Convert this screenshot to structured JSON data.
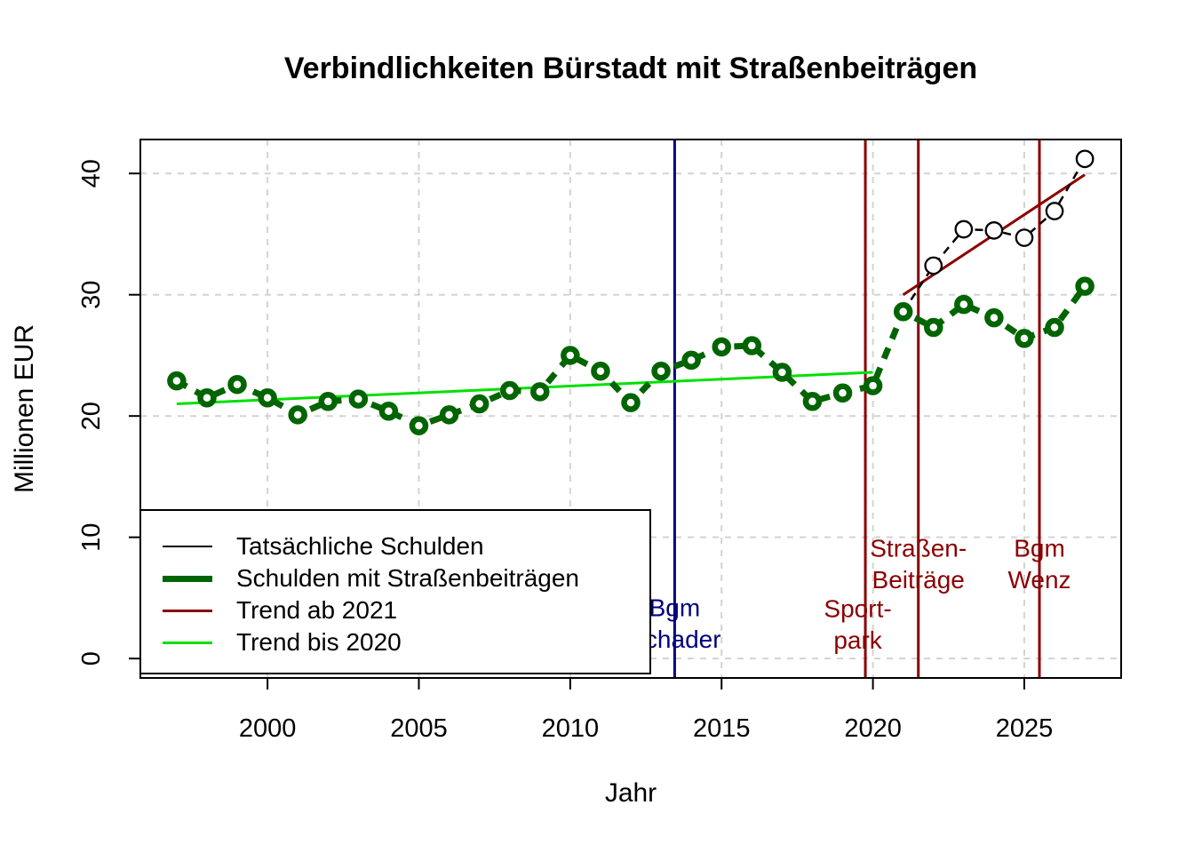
{
  "chart_data": {
    "type": "line",
    "title": "Verbindlichkeiten Bürstadt mit Straßenbeiträgen",
    "xlabel": "Jahr",
    "ylabel": "Millionen EUR",
    "xlim": [
      1995.8,
      2028.2
    ],
    "ylim": [
      -1.6,
      42.8
    ],
    "x_ticks": [
      2000,
      2005,
      2010,
      2015,
      2020,
      2025
    ],
    "y_ticks": [
      0,
      10,
      20,
      30,
      40
    ],
    "grid": true,
    "colors": {
      "background": "#FFFFFF",
      "grid": "#D3D3D3",
      "axis": "#000000"
    },
    "series": [
      {
        "name": "Tatsächliche Schulden",
        "color": "#000000",
        "line_width": 2.5,
        "dash": "9 7",
        "marker": "open-circle",
        "marker_radius": 9.2,
        "marker_stroke_width": 2.3,
        "x": [
          2021,
          2022,
          2023,
          2024,
          2025,
          2026,
          2027
        ],
        "values": [
          28.6,
          32.4,
          35.4,
          35.3,
          34.7,
          36.9,
          41.2
        ]
      },
      {
        "name": "Schulden mit Straßenbeiträgen",
        "color": "#006400",
        "line_width": 7,
        "dash": "13 11",
        "marker": "open-circle",
        "marker_radius": 7.5,
        "marker_stroke_width": 6.5,
        "x": [
          1997,
          1998,
          1999,
          2000,
          2001,
          2002,
          2003,
          2004,
          2005,
          2006,
          2007,
          2008,
          2009,
          2010,
          2011,
          2012,
          2013,
          2014,
          2015,
          2016,
          2017,
          2018,
          2019,
          2020,
          2021,
          2022,
          2023,
          2024,
          2025,
          2026,
          2027
        ],
        "values": [
          22.9,
          21.5,
          22.6,
          21.5,
          20.1,
          21.2,
          21.4,
          20.4,
          19.2,
          20.1,
          21.0,
          22.1,
          22.0,
          25.0,
          23.7,
          21.1,
          23.7,
          24.6,
          25.7,
          25.8,
          23.6,
          21.2,
          21.9,
          22.5,
          28.6,
          27.3,
          29.2,
          28.1,
          26.4,
          27.3,
          30.7
        ]
      }
    ],
    "trend_lines": [
      {
        "name": "Trend ab 2021",
        "color": "#8B0000",
        "width": 3,
        "x": [
          2021,
          2027
        ],
        "y": [
          30.0,
          39.9
        ]
      },
      {
        "name": "Trend bis 2020",
        "color": "#00E000",
        "width": 3,
        "x": [
          1997,
          2020
        ],
        "y": [
          21.0,
          23.6
        ]
      }
    ],
    "event_lines": [
      {
        "x": 2013.45,
        "color": "#000080",
        "width": 3,
        "label": "Bgm Schader",
        "label_lines": [
          "Bgm",
          "Schader"
        ],
        "label_x": 2013.45,
        "label_y": [
          4.2,
          1.6
        ]
      },
      {
        "x": 2019.75,
        "color": "#8B0000",
        "width": 3,
        "label": "Sportpark",
        "label_lines": [
          "Sport-",
          "park"
        ],
        "label_x": 2019.5,
        "label_y": [
          4.1,
          1.5
        ]
      },
      {
        "x": 2021.5,
        "color": "#8B0000",
        "width": 3,
        "label": "Straßen-Beiträge",
        "label_lines": [
          "Straßen-",
          "Beiträge"
        ],
        "label_x": 2021.5,
        "label_y": [
          9.1,
          6.5
        ]
      },
      {
        "x": 2025.5,
        "color": "#8B0000",
        "width": 3,
        "label": "Bgm Wenz",
        "label_lines": [
          "Bgm",
          "Wenz"
        ],
        "label_x": 2025.5,
        "label_y": [
          9.1,
          6.5
        ]
      }
    ]
  },
  "legend": {
    "position": "bottom-left",
    "items": [
      {
        "label": "Tatsächliche Schulden",
        "color": "#000000",
        "line_width": 2.5
      },
      {
        "label": "Schulden mit Straßenbeiträgen",
        "color": "#006400",
        "line_width": 7
      },
      {
        "label": "Trend ab 2021",
        "color": "#8B0000",
        "line_width": 3
      },
      {
        "label": "Trend bis 2020",
        "color": "#00E000",
        "line_width": 3
      }
    ]
  }
}
